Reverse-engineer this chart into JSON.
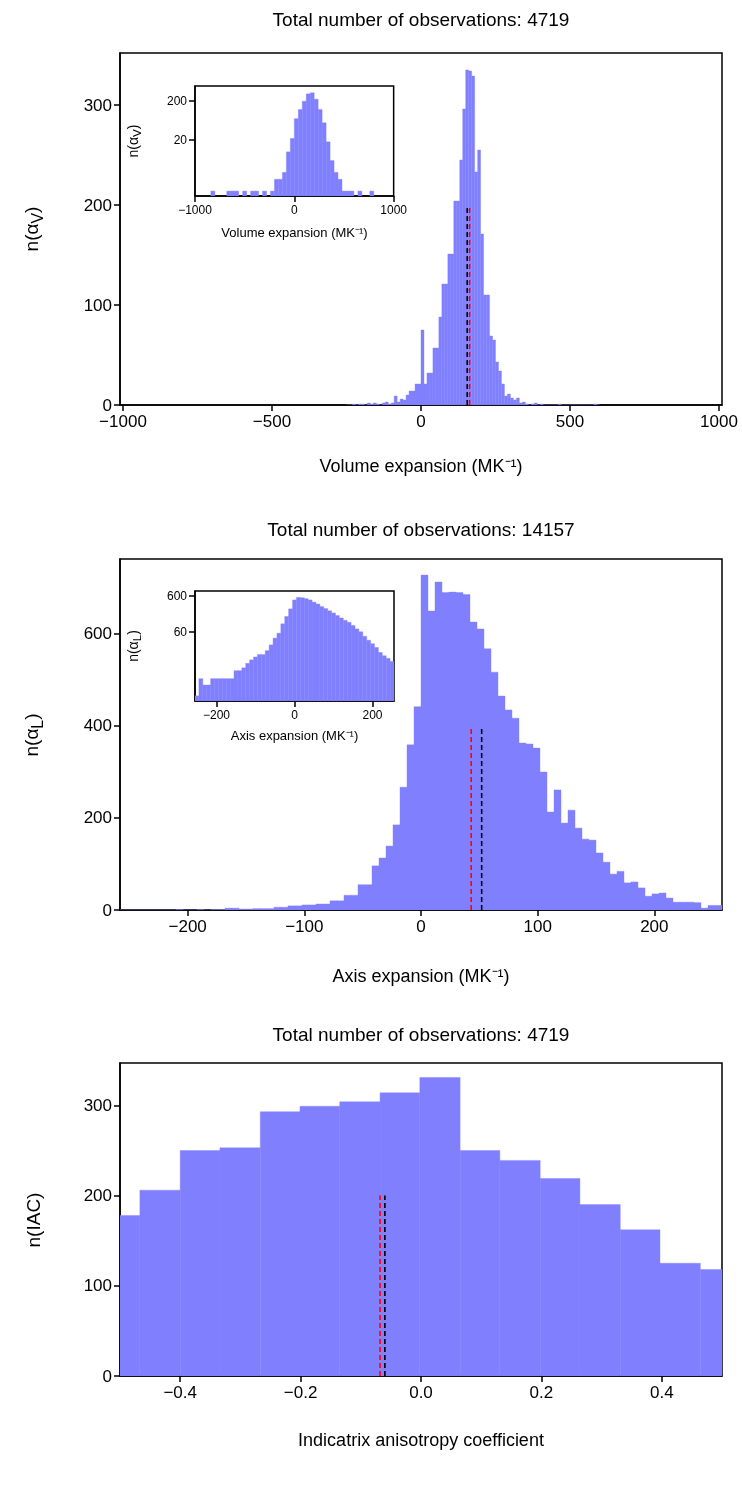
{
  "chart_data": [
    {
      "type": "histogram",
      "title": "Total number of observations: 4719",
      "xlabel": "Volume expansion (MK⁻¹)",
      "ylabel": "n(α$_{V}$)",
      "marker": "none",
      "bins": [
        -250,
        -240,
        -230,
        -220,
        -210,
        -200,
        -190,
        -180,
        -170,
        -160,
        -150,
        -140,
        -130,
        -120,
        -110,
        -100,
        -90,
        -80,
        -70,
        -60,
        -50,
        -40,
        -30,
        -20,
        -10,
        0,
        10,
        20,
        30,
        40,
        50,
        60,
        70,
        80,
        90,
        100,
        110,
        120,
        130,
        140,
        150,
        160,
        170,
        180,
        190,
        200,
        210,
        220,
        230,
        240,
        250,
        260,
        270,
        280,
        290,
        300,
        310,
        320,
        330,
        340,
        350,
        360,
        370,
        380,
        390,
        400,
        410,
        420,
        430,
        440,
        450,
        460,
        470,
        480,
        490,
        500,
        510,
        520,
        530,
        540,
        550,
        560,
        570,
        580,
        590,
        600
      ],
      "series": [
        {
          "color": "#8080ff",
          "values": [
            0,
            0,
            1,
            0,
            1,
            1,
            0,
            2,
            1,
            2,
            1,
            0,
            2,
            3,
            1,
            2,
            9,
            3,
            6,
            5,
            10,
            14,
            14,
            21,
            21,
            75,
            21,
            32,
            32,
            57,
            57,
            88,
            121,
            121,
            151,
            151,
            204,
            204,
            245,
            296,
            335,
            334,
            329,
            233,
            255,
            171,
            110,
            110,
            69,
            65,
            43,
            34,
            21,
            9,
            11,
            7,
            5,
            7,
            2,
            3,
            1,
            0,
            1,
            2,
            0,
            1,
            0,
            0,
            0,
            0,
            0,
            1,
            0,
            0,
            0,
            0,
            0,
            0,
            0,
            0,
            0,
            0,
            0,
            1,
            0
          ]
        },
        {
          "type": "line",
          "x": [
            163,
            163
          ],
          "values": [
            0,
            200
          ],
          "color": "#ff0000",
          "line_style": "dashed"
        },
        {
          "type": "line",
          "x": [
            155,
            155
          ],
          "values": [
            0,
            200
          ],
          "color": "#000000",
          "line_style": "dashed"
        }
      ],
      "xlim": [
        -1010,
        1010
      ],
      "xticks": [
        {
          "value": -1000,
          "label": "−1000"
        },
        {
          "value": -500,
          "label": "−500"
        },
        0,
        500,
        1000
      ],
      "ylim": [
        0,
        352
      ],
      "yticks": [
        0,
        100,
        200,
        300
      ]
    },
    {
      "type": "histogram",
      "xlabel": "Volume expansion (MK⁻¹)",
      "ylabel": "n(α$_{V}$)",
      "log": true,
      "bins": [
        -1000,
        -960,
        -920,
        -880,
        -840,
        -800,
        -760,
        -720,
        -680,
        -640,
        -600,
        -560,
        -520,
        -480,
        -440,
        -400,
        -360,
        -320,
        -280,
        -240,
        -200,
        -160,
        -120,
        -80,
        -40,
        0,
        40,
        80,
        120,
        160,
        200,
        240,
        280,
        320,
        360,
        400,
        440,
        480,
        520,
        560,
        600,
        640,
        680,
        720,
        760,
        800,
        840,
        880,
        920,
        960,
        1000
      ],
      "series": [
        {
          "color": "#8080ff",
          "values": [
            null,
            null,
            null,
            null,
            1,
            null,
            null,
            null,
            1,
            1,
            1,
            null,
            1,
            null,
            1,
            1,
            null,
            1,
            null,
            1,
            2,
            2,
            3,
            10,
            22,
            70,
            120,
            195,
            300,
            320,
            220,
            120,
            55,
            18,
            6,
            3,
            2,
            1,
            1,
            1,
            null,
            1,
            null,
            null,
            1,
            null,
            null,
            null,
            null,
            null
          ]
        }
      ],
      "xlim": [
        -1000,
        1000
      ],
      "xticks": [
        {
          "value": -1000,
          "label": "−1000"
        },
        0,
        1000
      ],
      "ylim": [
        0.75,
        477
      ],
      "yticks": [
        20,
        200
      ]
    },
    {
      "type": "histogram",
      "title": "Total number of observations: 14157",
      "xlabel": "Axis expansion (MK⁻¹)",
      "ylabel": "n(α$_{L}$)",
      "marker": "none",
      "bins": [
        -258,
        -252,
        -246,
        -240,
        -234,
        -228,
        -222,
        -216,
        -210,
        -204,
        -198,
        -192,
        -186,
        -180,
        -174,
        -168,
        -162,
        -156,
        -150,
        -144,
        -138,
        -132,
        -126,
        -120,
        -114,
        -108,
        -102,
        -96,
        -90,
        -84,
        -78,
        -72,
        -66,
        -60,
        -54,
        -48,
        -42,
        -36,
        -30,
        -24,
        -18,
        -12,
        -6,
        0,
        6,
        12,
        18,
        24,
        30,
        36,
        42,
        48,
        54,
        60,
        66,
        72,
        78,
        84,
        90,
        96,
        102,
        108,
        114,
        120,
        126,
        132,
        138,
        144,
        150,
        156,
        162,
        168,
        174,
        180,
        186,
        192,
        198,
        204,
        210,
        216,
        222,
        228,
        234,
        240,
        246,
        252,
        258
      ],
      "series": [
        {
          "color": "#8080ff",
          "values": [
            0,
            0,
            0,
            0,
            0,
            0,
            0,
            0,
            1,
            0,
            0,
            1,
            0,
            1,
            1,
            4,
            4,
            2,
            2,
            3,
            3,
            3,
            6,
            6,
            9,
            9,
            11,
            11,
            13,
            13,
            20,
            20,
            32,
            32,
            55,
            55,
            96,
            113,
            139,
            185,
            267,
            359,
            442,
            728,
            650,
            713,
            690,
            691,
            690,
            686,
            626,
            611,
            568,
            517,
            465,
            435,
            417,
            363,
            361,
            352,
            300,
            213,
            261,
            189,
            217,
            178,
            154,
            152,
            124,
            104,
            78,
            84,
            59,
            61,
            48,
            30,
            35,
            37,
            26,
            17,
            17,
            17,
            16,
            4,
            10,
            10
          ]
        },
        {
          "type": "line",
          "x": [
            43,
            43
          ],
          "values": [
            0,
            400
          ],
          "color": "#ff0000",
          "line_style": "dashed"
        },
        {
          "type": "line",
          "x": [
            52,
            52
          ],
          "values": [
            0,
            400
          ],
          "color": "#000000",
          "line_style": "dashed"
        }
      ],
      "xlim": [
        -258,
        258
      ],
      "xticks": [
        {
          "value": -200,
          "label": "−200"
        },
        {
          "value": -100,
          "label": "−100"
        },
        0,
        100,
        200
      ],
      "ylim": [
        0,
        763
      ],
      "yticks": [
        0,
        200,
        400,
        600
      ]
    },
    {
      "type": "histogram",
      "xlabel": "Axis expansion (MK⁻¹)",
      "ylabel": "n(α$_{L}$)",
      "log": true,
      "bins": [
        -255,
        -245,
        -235,
        -225,
        -215,
        -205,
        -195,
        -185,
        -175,
        -165,
        -155,
        -145,
        -135,
        -125,
        -115,
        -105,
        -95,
        -85,
        -75,
        -65,
        -55,
        -45,
        -35,
        -25,
        -15,
        -5,
        5,
        15,
        25,
        35,
        45,
        55,
        65,
        75,
        85,
        95,
        105,
        115,
        125,
        135,
        145,
        155,
        165,
        175,
        185,
        195,
        205,
        215,
        225,
        235,
        245,
        255
      ],
      "series": [
        {
          "color": "#8080ff",
          "values": [
            1,
            3,
            2,
            2,
            3,
            3,
            3,
            3,
            3,
            3,
            5,
            5,
            6,
            8,
            10,
            12,
            14,
            14,
            18,
            26,
            40,
            55,
            100,
            160,
            260,
            460,
            540,
            530,
            500,
            460,
            400,
            355,
            300,
            265,
            230,
            200,
            170,
            145,
            125,
            110,
            90,
            72,
            60,
            45,
            35,
            28,
            22,
            16,
            13,
            11,
            9
          ]
        }
      ],
      "xlim": [
        -255,
        255
      ],
      "xticks": [
        {
          "value": -200,
          "label": "−200"
        },
        0,
        200
      ],
      "ylim": [
        0.72,
        815
      ],
      "yticks": [
        60,
        600
      ]
    },
    {
      "type": "histogram",
      "title": "Total number of observations: 4719",
      "xlabel": "Indicatrix anisotropy coefficient",
      "ylabel": "n(IAC)",
      "marker": "none",
      "bins": [
        -0.5,
        -0.467,
        -0.4,
        -0.334,
        -0.267,
        -0.201,
        -0.135,
        -0.068,
        -0.002,
        0.065,
        0.131,
        0.198,
        0.264,
        0.331,
        0.397,
        0.464,
        0.5
      ],
      "series": [
        {
          "color": "#8080ff",
          "values": [
            178,
            206,
            250,
            253,
            293,
            299,
            304,
            314,
            331,
            250,
            239,
            219,
            190,
            162,
            125,
            118
          ]
        },
        {
          "type": "line",
          "x": [
            -0.068,
            -0.068
          ],
          "values": [
            0,
            200
          ],
          "color": "#ff0000",
          "line_style": "dashed"
        },
        {
          "type": "line",
          "x": [
            -0.06,
            -0.06
          ],
          "values": [
            0,
            200
          ],
          "color": "#000000",
          "line_style": "dashed"
        }
      ],
      "xlim": [
        -0.5,
        0.5
      ],
      "xticks": [
        {
          "value": -0.4,
          "label": "−0.4"
        },
        {
          "value": -0.2,
          "label": "−0.2"
        },
        {
          "value": 0,
          "label": "0.0"
        },
        0.2,
        0.4
      ],
      "ylim": [
        0,
        347
      ],
      "yticks": [
        0,
        100,
        200,
        300
      ]
    }
  ]
}
